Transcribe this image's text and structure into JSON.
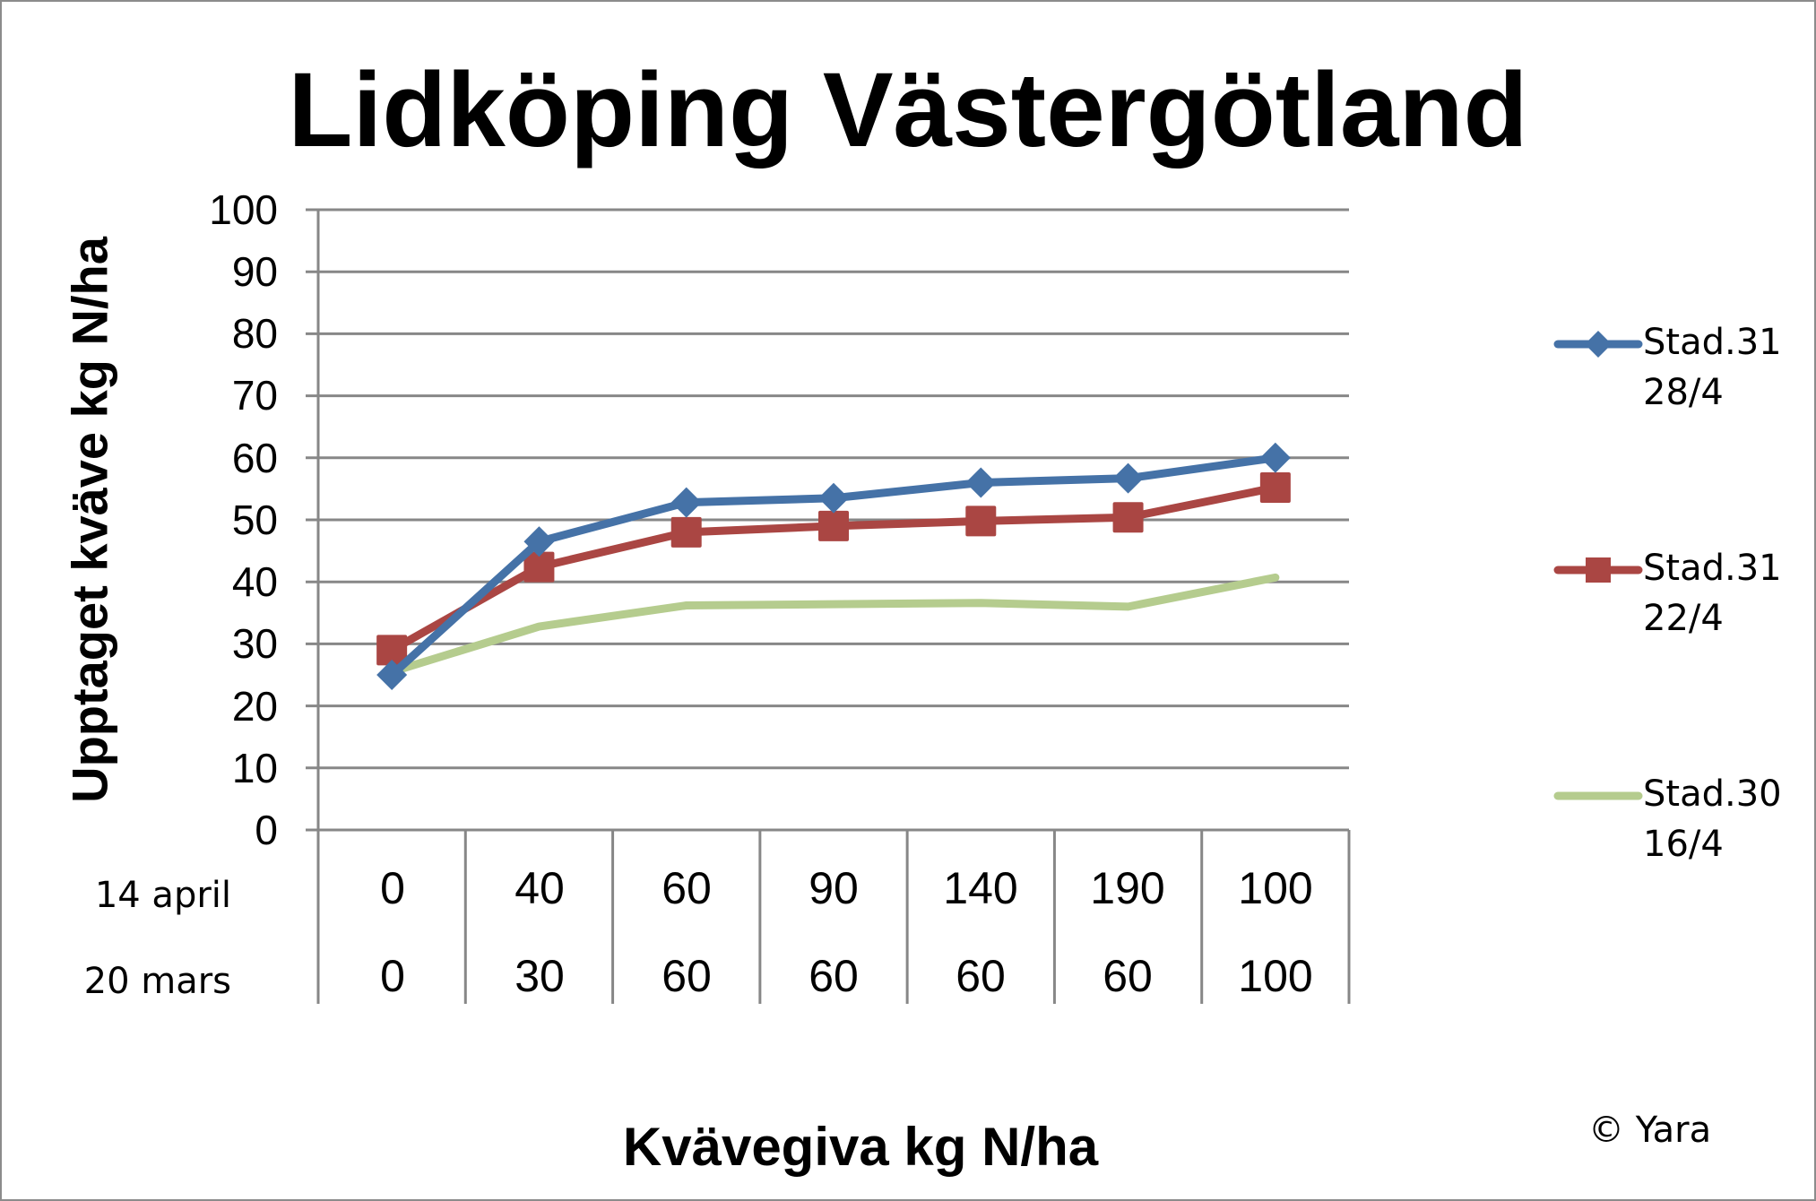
{
  "chart_data": {
    "type": "line",
    "title": "Lidköping Västergötland",
    "xlabel": "Kvävegiva kg N/ha",
    "ylabel": "Upptaget kväve kg N/ha",
    "ylim": [
      0,
      100
    ],
    "yticks": [
      0,
      10,
      20,
      30,
      40,
      50,
      60,
      70,
      80,
      90,
      100
    ],
    "grid": true,
    "legend_position": "right",
    "categories": [
      "0 / 0",
      "40 / 30",
      "60 / 60",
      "90 / 60",
      "140 / 60",
      "190 / 60",
      "100 / 100"
    ],
    "category_rows": [
      {
        "label": "14 april",
        "values": [
          "0",
          "40",
          "60",
          "90",
          "140",
          "190",
          "100"
        ]
      },
      {
        "label": "20 mars",
        "values": [
          "0",
          "30",
          "60",
          "60",
          "60",
          "60",
          "100"
        ]
      }
    ],
    "series": [
      {
        "name": "Stad.31 28/4",
        "color": "#4572a7",
        "marker": "diamond",
        "values": [
          25,
          46.5,
          52.8,
          53.5,
          56,
          56.7,
          60
        ]
      },
      {
        "name": "Stad.31 22/4",
        "color": "#aa4643",
        "marker": "square",
        "values": [
          29,
          42.4,
          48,
          49,
          49.8,
          50.4,
          55.2
        ]
      },
      {
        "name": "Stad.30 16/4",
        "color": "#b5cc8e",
        "marker": "none",
        "values": [
          25.5,
          32.8,
          36.2,
          36.4,
          36.6,
          36,
          40.7
        ]
      }
    ],
    "annotations": [
      "© Yara"
    ]
  },
  "title": "Lidköping Västergötland",
  "ylabel": "Upptaget kväve kg N/ha",
  "xlabel": "Kvävegiva kg N/ha",
  "copyright": "© Yara",
  "yticks": [
    "100",
    "90",
    "80",
    "70",
    "60",
    "50",
    "40",
    "30",
    "20",
    "10",
    "0"
  ],
  "rows": {
    "r1": {
      "label": "14 april",
      "values": [
        "0",
        "40",
        "60",
        "90",
        "140",
        "190",
        "100"
      ]
    },
    "r2": {
      "label": "20 mars",
      "values": [
        "0",
        "30",
        "60",
        "60",
        "60",
        "60",
        "100"
      ]
    }
  },
  "legend": [
    {
      "label": "Stad.31\n28/4"
    },
    {
      "label": "Stad.31\n22/4"
    },
    {
      "label": "Stad.30\n16/4"
    }
  ]
}
